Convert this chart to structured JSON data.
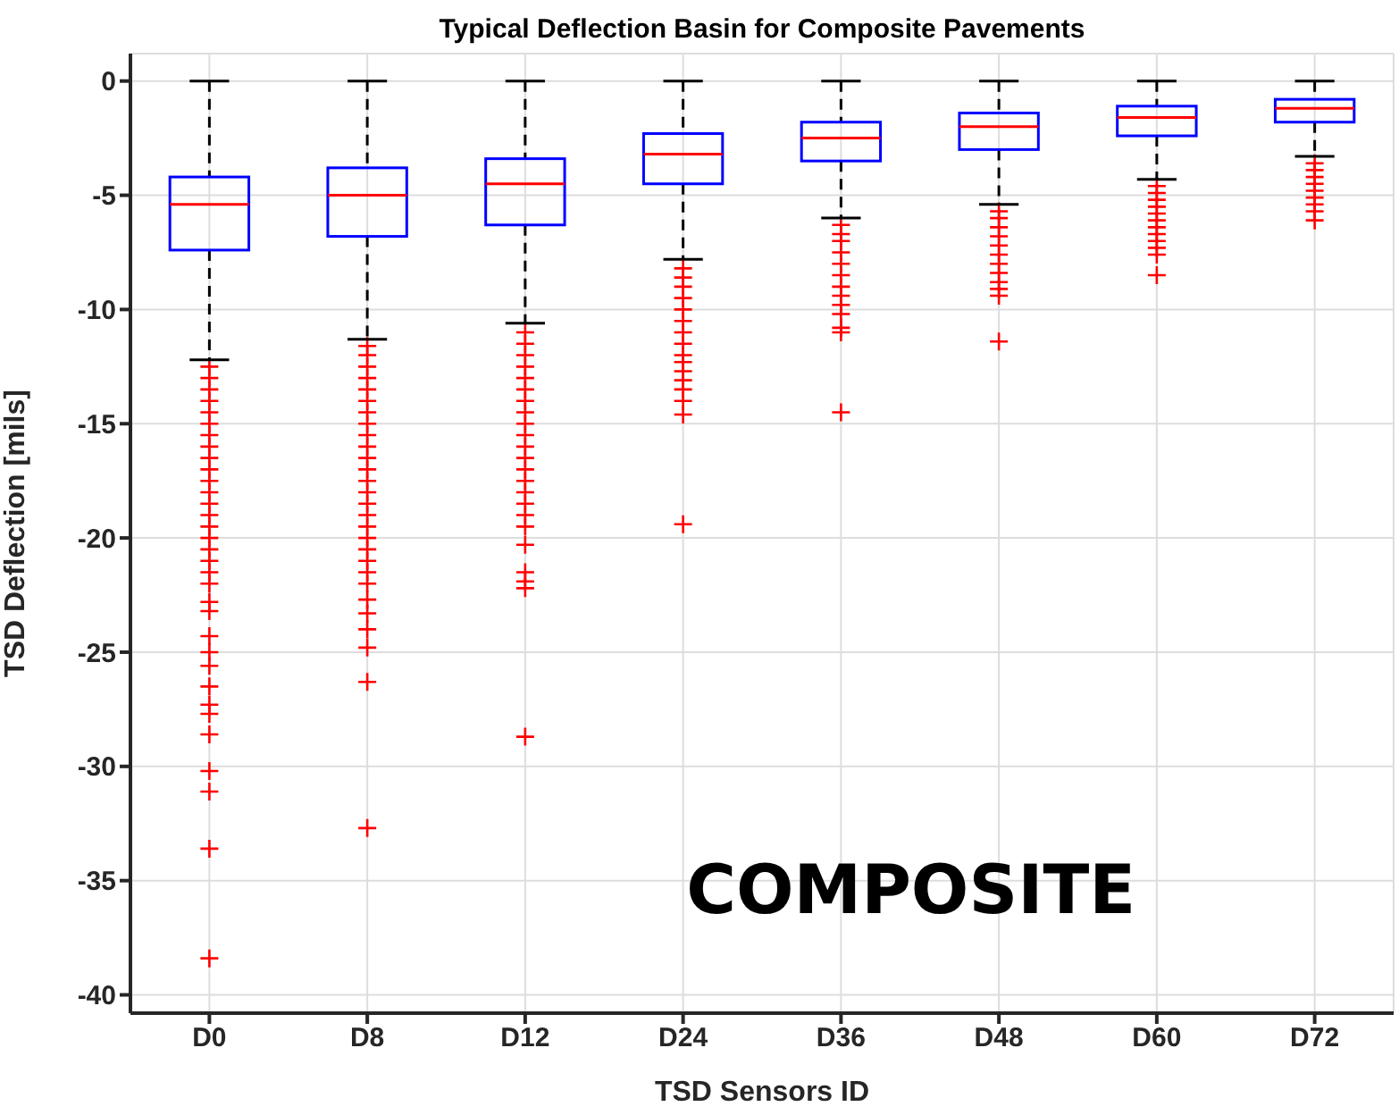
{
  "chart_data": {
    "type": "box",
    "title": "Typical Deflection Basin for Composite Pavements",
    "xlabel": "TSD Sensors ID",
    "ylabel": "TSD Deflection [mils]",
    "categories": [
      "D0",
      "D8",
      "D12",
      "D24",
      "D36",
      "D48",
      "D60",
      "D72"
    ],
    "color": "#0000ff",
    "marker": "cross",
    "grid": true,
    "ylim": [
      -40.8,
      1.2
    ],
    "yticks": [
      -40,
      -35,
      -30,
      -25,
      -20,
      -15,
      -10,
      -5,
      0
    ],
    "boxes": [
      {
        "low": -12.2,
        "q1": -7.4,
        "median": -5.4,
        "q3": -4.2,
        "high": 0,
        "outliers": [
          -12.5,
          -13,
          -13.5,
          -14,
          -14.5,
          -15,
          -15.5,
          -16,
          -16.5,
          -17,
          -17.5,
          -18,
          -18.5,
          -19,
          -19.5,
          -20,
          -20.5,
          -21,
          -21.5,
          -22,
          -22.8,
          -23.2,
          -24.3,
          -25,
          -25.6,
          -26.5,
          -27.3,
          -27.7,
          -28.6,
          -30.2,
          -31.1,
          -33.6,
          -38.4
        ]
      },
      {
        "low": -11.3,
        "q1": -6.8,
        "median": -5.0,
        "q3": -3.8,
        "high": 0,
        "outliers": [
          -11.6,
          -12,
          -12.5,
          -13,
          -13.5,
          -14,
          -14.5,
          -15,
          -15.5,
          -16,
          -16.5,
          -17,
          -17.5,
          -18,
          -18.5,
          -19,
          -19.5,
          -20,
          -20.5,
          -21,
          -21.5,
          -22,
          -22.7,
          -23.3,
          -24,
          -24.8,
          -26.3,
          -32.7
        ]
      },
      {
        "low": -10.6,
        "q1": -6.3,
        "median": -4.5,
        "q3": -3.4,
        "high": 0,
        "outliers": [
          -11,
          -11.5,
          -12,
          -12.5,
          -13,
          -13.5,
          -14,
          -14.5,
          -15,
          -15.5,
          -16,
          -16.5,
          -17,
          -17.5,
          -18,
          -18.5,
          -19,
          -19.5,
          -20.3,
          -21.5,
          -21.9,
          -22.2,
          -28.7
        ]
      },
      {
        "low": -7.8,
        "q1": -4.5,
        "median": -3.2,
        "q3": -2.3,
        "high": 0,
        "outliers": [
          -8.2,
          -8.6,
          -9,
          -9.5,
          -10,
          -10.5,
          -11,
          -11.5,
          -12,
          -12.3,
          -12.7,
          -13.1,
          -13.5,
          -14,
          -14.6,
          -19.4
        ]
      },
      {
        "low": -6.0,
        "q1": -3.5,
        "median": -2.5,
        "q3": -1.8,
        "high": 0,
        "outliers": [
          -6.3,
          -6.7,
          -7,
          -7.5,
          -8,
          -8.5,
          -9,
          -9.4,
          -9.8,
          -10.2,
          -10.8,
          -11,
          -14.5
        ]
      },
      {
        "low": -5.4,
        "q1": -3.0,
        "median": -2.0,
        "q3": -1.4,
        "high": 0,
        "outliers": [
          -5.7,
          -6,
          -6.4,
          -6.8,
          -7.2,
          -7.6,
          -8,
          -8.4,
          -8.8,
          -9.1,
          -9.4,
          -11.4
        ]
      },
      {
        "low": -4.3,
        "q1": -2.4,
        "median": -1.6,
        "q3": -1.1,
        "high": 0,
        "outliers": [
          -4.6,
          -4.9,
          -5.2,
          -5.5,
          -5.8,
          -6.1,
          -6.4,
          -6.7,
          -7,
          -7.3,
          -7.6,
          -8.5
        ]
      },
      {
        "low": -3.3,
        "q1": -1.8,
        "median": -1.2,
        "q3": -0.8,
        "high": 0,
        "outliers": [
          -3.6,
          -3.9,
          -4.2,
          -4.5,
          -4.8,
          -5.1,
          -5.4,
          -5.7,
          -6.1
        ]
      }
    ],
    "annotations": [
      "COMPOSITE"
    ]
  }
}
